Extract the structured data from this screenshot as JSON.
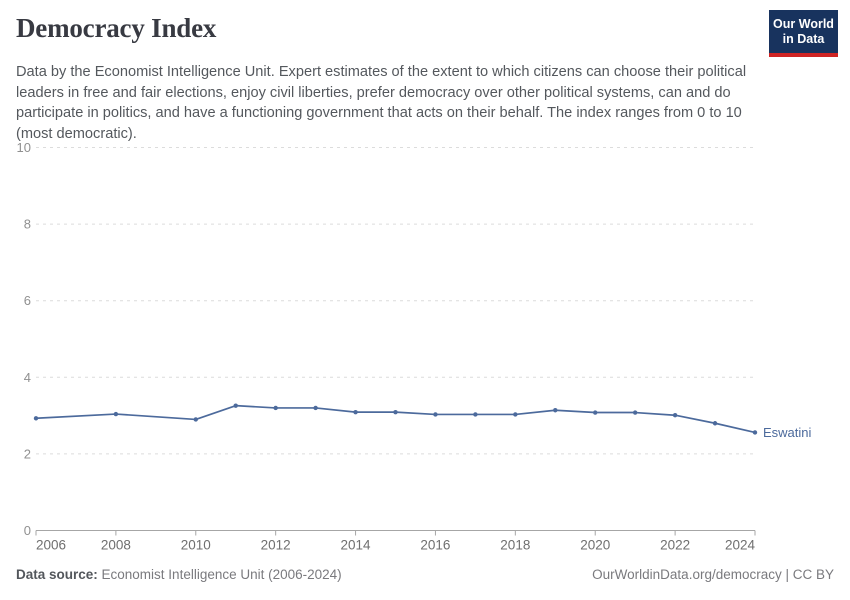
{
  "header": {
    "title": "Democracy Index",
    "subtitle": "Data by the Economist Intelligence Unit. Expert estimates of the extent to which citizens can choose their political leaders in free and fair elections, enjoy civil liberties, prefer democracy over other political systems, can and do participate in politics, and have a functioning government that acts on their behalf. The index ranges from 0 to 10 (most democratic).",
    "logo": {
      "line1": "Our World",
      "line2": "in Data",
      "bg_color": "#18335e",
      "bar_color": "#cf2424"
    }
  },
  "chart_data": {
    "type": "line",
    "title": "Democracy Index",
    "xlabel": "",
    "ylabel": "",
    "xlim": [
      2006,
      2024
    ],
    "ylim": [
      0,
      10
    ],
    "x_ticks": [
      2006,
      2008,
      2010,
      2012,
      2014,
      2016,
      2018,
      2020,
      2022,
      2024
    ],
    "y_ticks": [
      0,
      2,
      4,
      6,
      8,
      10
    ],
    "grid": "horizontal-dashed",
    "legend_position": "end-of-line",
    "series": [
      {
        "name": "Eswatini",
        "color": "#4c6a9c",
        "points": [
          [
            2006,
            2.93
          ],
          [
            2008,
            3.04
          ],
          [
            2010,
            2.9
          ],
          [
            2011,
            3.26
          ],
          [
            2012,
            3.2
          ],
          [
            2013,
            3.2
          ],
          [
            2014,
            3.09
          ],
          [
            2015,
            3.09
          ],
          [
            2016,
            3.03
          ],
          [
            2017,
            3.03
          ],
          [
            2018,
            3.03
          ],
          [
            2019,
            3.14
          ],
          [
            2020,
            3.08
          ],
          [
            2021,
            3.08
          ],
          [
            2022,
            3.01
          ],
          [
            2023,
            2.8
          ],
          [
            2024,
            2.56
          ]
        ]
      }
    ],
    "axis_color": "#a6a6a6",
    "grid_color": "#dcdcdc"
  },
  "footer": {
    "source_label": "Data source:",
    "source_value": " Economist Intelligence Unit (2006-2024)",
    "credit": "OurWorldinData.org/democracy | CC BY"
  }
}
